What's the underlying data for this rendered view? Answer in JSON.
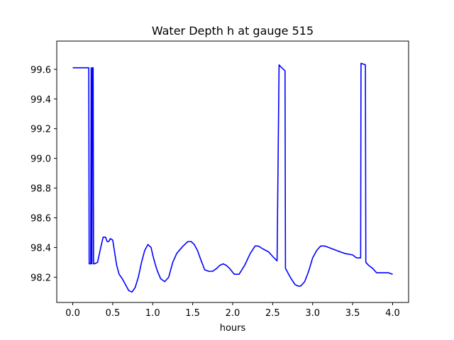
{
  "chart_data": {
    "type": "line",
    "title": "Water Depth h at gauge 515",
    "xlabel": "hours",
    "ylabel": "",
    "xlim": [
      -0.2,
      4.2
    ],
    "ylim": [
      98.03,
      99.79
    ],
    "xticks": [
      0.0,
      0.5,
      1.0,
      1.5,
      2.0,
      2.5,
      3.0,
      3.5,
      4.0
    ],
    "xtick_labels": [
      "0.0",
      "0.5",
      "1.0",
      "1.5",
      "2.0",
      "2.5",
      "3.0",
      "3.5",
      "4.0"
    ],
    "yticks": [
      98.2,
      98.4,
      98.6,
      98.8,
      99.0,
      99.2,
      99.4,
      99.6
    ],
    "ytick_labels": [
      "98.2",
      "98.4",
      "98.6",
      "98.8",
      "99.0",
      "99.2",
      "99.4",
      "99.6"
    ],
    "grid": false,
    "series": [
      {
        "color": "#0000ff",
        "x": [
          0.0,
          0.2,
          0.205,
          0.225,
          0.23,
          0.24,
          0.245,
          0.255,
          0.26,
          0.27,
          0.31,
          0.35,
          0.38,
          0.41,
          0.43,
          0.45,
          0.47,
          0.5,
          0.52,
          0.55,
          0.58,
          0.62,
          0.65,
          0.7,
          0.74,
          0.78,
          0.82,
          0.86,
          0.9,
          0.94,
          0.98,
          1.0,
          1.03,
          1.06,
          1.1,
          1.15,
          1.2,
          1.25,
          1.3,
          1.38,
          1.44,
          1.48,
          1.52,
          1.56,
          1.6,
          1.65,
          1.7,
          1.75,
          1.8,
          1.84,
          1.88,
          1.92,
          1.96,
          2.02,
          2.08,
          2.15,
          2.22,
          2.28,
          2.32,
          2.38,
          2.45,
          2.5,
          2.555,
          2.58,
          2.595,
          2.655,
          2.66,
          2.72,
          2.78,
          2.82,
          2.85,
          2.9,
          2.95,
          3.0,
          3.05,
          3.1,
          3.15,
          3.2,
          3.25,
          3.3,
          3.35,
          3.4,
          3.5,
          3.55,
          3.6,
          3.605,
          3.66,
          3.665,
          3.7,
          3.75,
          3.8,
          3.85,
          3.9,
          3.95,
          4.0
        ],
        "y": [
          99.61,
          99.61,
          98.29,
          98.29,
          99.61,
          98.29,
          99.61,
          99.61,
          98.29,
          98.29,
          98.3,
          98.4,
          98.47,
          98.47,
          98.44,
          98.44,
          98.46,
          98.45,
          98.38,
          98.28,
          98.22,
          98.19,
          98.16,
          98.11,
          98.1,
          98.13,
          98.2,
          98.3,
          98.38,
          98.42,
          98.4,
          98.35,
          98.29,
          98.24,
          98.19,
          98.17,
          98.2,
          98.3,
          98.36,
          98.41,
          98.44,
          98.44,
          98.42,
          98.38,
          98.32,
          98.25,
          98.24,
          98.24,
          98.26,
          98.28,
          98.29,
          98.28,
          98.26,
          98.22,
          98.22,
          98.28,
          98.36,
          98.41,
          98.41,
          98.39,
          98.37,
          98.34,
          98.31,
          99.63,
          99.62,
          99.59,
          98.26,
          98.2,
          98.15,
          98.14,
          98.14,
          98.17,
          98.24,
          98.33,
          98.38,
          98.41,
          98.41,
          98.4,
          98.39,
          98.38,
          98.37,
          98.36,
          98.35,
          98.33,
          98.33,
          99.64,
          99.63,
          98.3,
          98.28,
          98.26,
          98.23,
          98.23,
          98.23,
          98.23,
          98.22
        ]
      }
    ]
  }
}
